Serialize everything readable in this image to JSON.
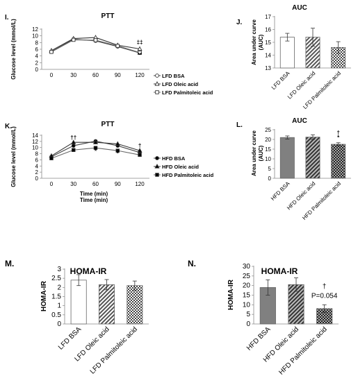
{
  "chart_data": [
    {
      "id": "I",
      "panel_label": "I.",
      "type": "line",
      "title": "PTT",
      "xlabel": "Time (min)",
      "ylabel": "Glucose level (mmol/L)",
      "x": [
        0,
        30,
        60,
        90,
        120
      ],
      "xticks": [
        "0",
        "30",
        "60",
        "90",
        "120"
      ],
      "ylim": [
        0,
        12
      ],
      "yticks": [
        "0",
        "2",
        "4",
        "6",
        "8",
        "10",
        "12"
      ],
      "series": [
        {
          "name": "LFD BSA",
          "marker": "circle-open",
          "values": [
            5.3,
            9.0,
            8.5,
            6.8,
            4.9
          ]
        },
        {
          "name": "LFD Oleic acid",
          "marker": "triangle-open",
          "values": [
            5.6,
            9.2,
            9.5,
            7.2,
            6.1
          ]
        },
        {
          "name": "LFD Palmitoleic acid",
          "marker": "square-open",
          "values": [
            5.2,
            8.8,
            8.7,
            7.0,
            5.0
          ]
        }
      ],
      "annotations": [
        {
          "text": "‡‡",
          "x": 120,
          "y": 7.6
        },
        {
          "text": "**",
          "x": 120,
          "y": 3.7
        }
      ],
      "legend": "right"
    },
    {
      "id": "J",
      "panel_label": "J.",
      "type": "bar",
      "title": "AUC",
      "ylabel": "Area under curve (AUC)",
      "categories": [
        "LFD BSA",
        "LFD Oleic acid",
        "LFD Palmitoleic acid"
      ],
      "values": [
        15.4,
        15.4,
        14.6
      ],
      "errors": [
        0.3,
        0.7,
        0.45
      ],
      "fills": [
        "white",
        "diagonal",
        "checker"
      ],
      "ylim": [
        13,
        17
      ],
      "yticks": [
        "13",
        "14",
        "15",
        "16",
        "17"
      ]
    },
    {
      "id": "K",
      "panel_label": "K.",
      "type": "line",
      "title": "PTT",
      "xlabel": "Time (min)",
      "ylabel": "Glucose level (mmol/L)",
      "x": [
        0,
        30,
        60,
        90,
        120
      ],
      "xticks": [
        "0",
        "30",
        "60",
        "90",
        "120"
      ],
      "ylim": [
        0,
        14
      ],
      "yticks": [
        "0",
        "2",
        "4",
        "6",
        "8",
        "10",
        "12",
        "14"
      ],
      "series": [
        {
          "name": "HFD BSA",
          "marker": "circle-filled",
          "values": [
            7.0,
            10.6,
            12.1,
            10.6,
            8.4
          ]
        },
        {
          "name": "HFD Oleic acid",
          "marker": "triangle-filled",
          "values": [
            7.3,
            11.7,
            11.7,
            11.2,
            9.0
          ]
        },
        {
          "name": "HFD Palmitoleic acid",
          "marker": "square-filled",
          "values": [
            6.5,
            9.2,
            9.9,
            9.0,
            7.6
          ]
        }
      ],
      "annotations": [
        {
          "text": "††",
          "x": 30,
          "y": 12.6
        },
        {
          "text": "*",
          "x": 60,
          "y": 8.2
        },
        {
          "text": "*",
          "x": 90,
          "y": 7.5
        },
        {
          "text": "†",
          "x": 120,
          "y": 10.0
        }
      ],
      "legend": "right"
    },
    {
      "id": "L",
      "panel_label": "L.",
      "type": "bar",
      "title": "AUC",
      "ylabel": "Area under curve (AUC)",
      "categories": [
        "HFD BSA",
        "HFD Oleic acid",
        "HFD Palmitoleic acid"
      ],
      "values": [
        21.0,
        21.2,
        17.5
      ],
      "errors": [
        0.8,
        1.2,
        0.8
      ],
      "fills": [
        "gray",
        "diagonal-dark",
        "checker-dark"
      ],
      "ylim": [
        0,
        25
      ],
      "yticks": [
        "0",
        "5",
        "10",
        "15",
        "20",
        "25"
      ],
      "annotations": [
        {
          "text": "†",
          "bar": 2,
          "y": 22.5
        },
        {
          "text": "*",
          "bar": 2,
          "y": 20.0
        }
      ]
    },
    {
      "id": "M",
      "panel_label": "M.",
      "type": "bar",
      "title": "HOMA-IR",
      "ylabel": "HOMA-IR",
      "categories": [
        "LFD BSA",
        "LFD Oleic acid",
        "LFD Palmitoleic acid"
      ],
      "values": [
        2.4,
        2.15,
        2.1
      ],
      "errors": [
        0.3,
        0.28,
        0.25
      ],
      "fills": [
        "white",
        "diagonal",
        "checker"
      ],
      "ylim": [
        0,
        3
      ],
      "yticks": [
        "0",
        "0.5",
        "1",
        "1.5",
        "2",
        "2.5",
        "3"
      ]
    },
    {
      "id": "N",
      "panel_label": "N.",
      "type": "bar",
      "title": "HOMA-IR",
      "ylabel": "HOMA-IR",
      "categories": [
        "HFD BSA",
        "HFD Oleic acid",
        "HFD Palmitoleic acid"
      ],
      "values": [
        19.0,
        20.5,
        8.0
      ],
      "errors": [
        4.0,
        3.5,
        2.0
      ],
      "fills": [
        "gray",
        "diagonal-dark",
        "checker-dark"
      ],
      "ylim": [
        0,
        30
      ],
      "yticks": [
        "0",
        "5",
        "10",
        "15",
        "20",
        "25",
        "30"
      ],
      "annotations": [
        {
          "text": "†",
          "bar": 2,
          "y": 18.5
        },
        {
          "text": "P=0.054",
          "bar": 2,
          "y": 13.5
        }
      ]
    }
  ]
}
